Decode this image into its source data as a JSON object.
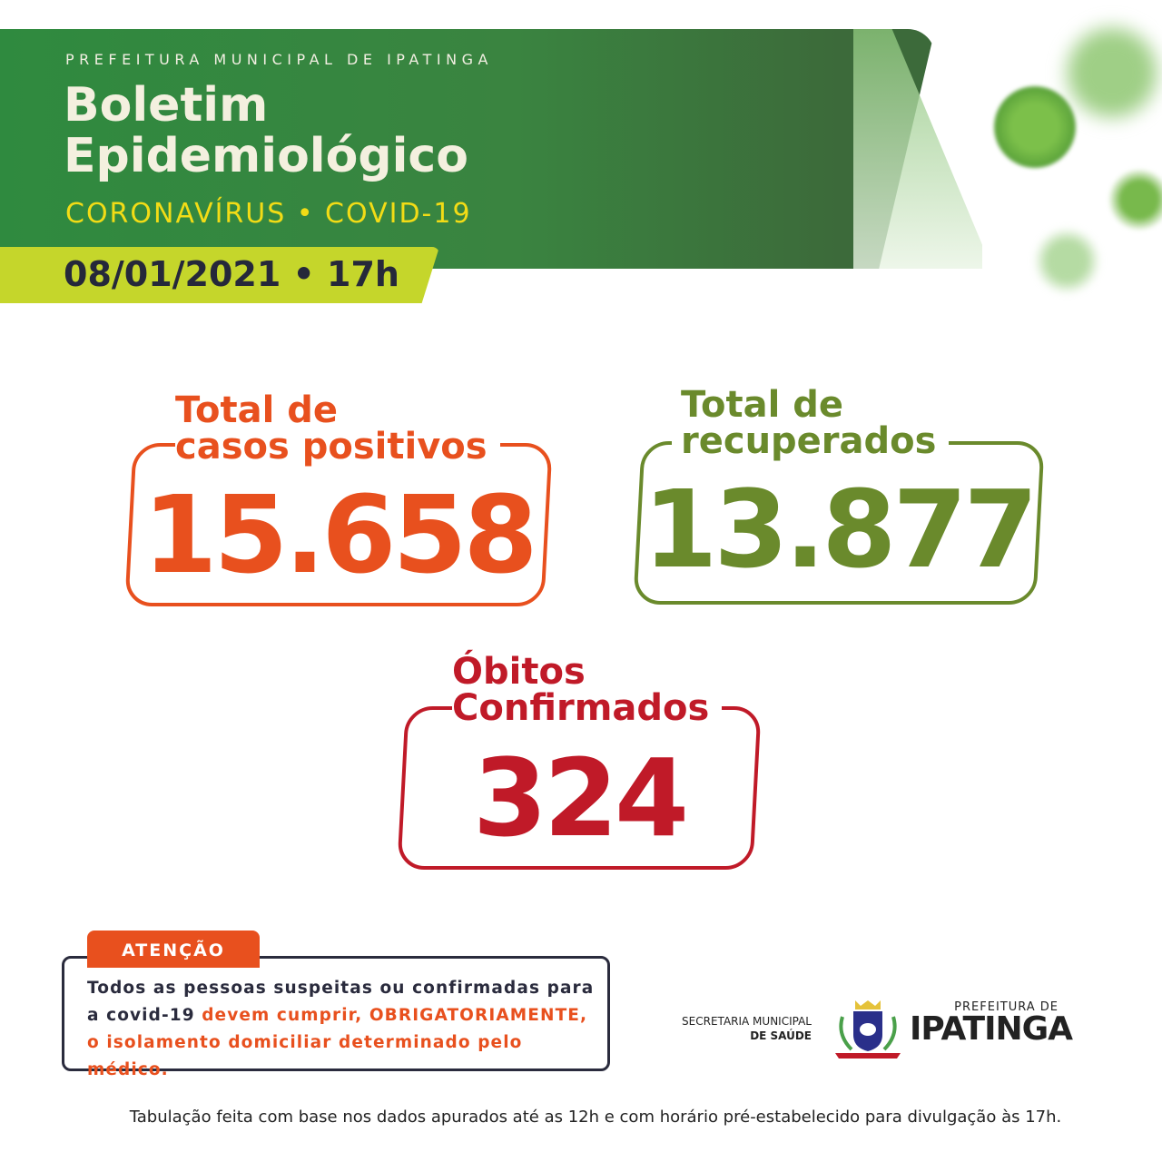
{
  "header": {
    "organization": "PREFEITURA MUNICIPAL DE IPATINGA",
    "title_line1": "Boletim",
    "title_line2": "Epidemiológico",
    "subtitle": "CORONAVÍRUS • COVID-19",
    "date": "08/01/2021 • 17h"
  },
  "stats": {
    "positive": {
      "label_line1": "Total de",
      "label_line2": "casos positivos",
      "value": "15.658",
      "color": "#e8501e"
    },
    "recovered": {
      "label_line1": "Total de",
      "label_line2": "recuperados",
      "value": "13.877",
      "color": "#6a8a2c"
    },
    "deaths": {
      "label_line1": "Óbitos",
      "label_line2": "Confirmados",
      "value": "324",
      "color": "#c01a28"
    }
  },
  "attention": {
    "tag": "ATENÇÃO",
    "text_plain": "Todos as pessoas suspeitas ou confirmadas para a covid-19",
    "text_highlight": "devem cumprir, OBRIGATORIAMENTE, o isolamento domiciliar determinado pelo médico."
  },
  "logos": {
    "secretaria_line1": "SECRETARIA MUNICIPAL",
    "secretaria_line2": "DE SAÚDE",
    "prefeitura_small": "PREFEITURA DE",
    "prefeitura_big": "IPATINGA"
  },
  "footer": "Tabulação feita com base nos dados apurados até as 12h e com horário pré-estabelecido para divulgação às 17h."
}
